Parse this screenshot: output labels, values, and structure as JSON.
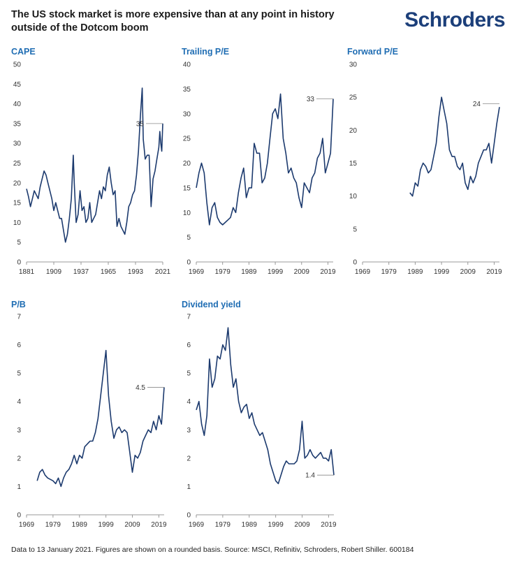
{
  "header": {
    "title": "The US stock market is more expensive than at any point in history outside of the Dotcom boom",
    "logo": "Schroders"
  },
  "footer": {
    "note": "Data to 13 January 2021. Figures are shown on a rounded basis. Source: MSCI, Refinitiv, Schroders, Robert Shiller. 600184"
  },
  "colors": {
    "line": "#1c3a6e",
    "title": "#1f6db3",
    "axis": "#999999"
  },
  "chart_data": [
    {
      "type": "line",
      "title": "CAPE",
      "ylim": [
        0,
        50
      ],
      "yticks": [
        0,
        5,
        10,
        15,
        20,
        25,
        30,
        35,
        40,
        45,
        50
      ],
      "xlim": [
        1881,
        2021
      ],
      "xticks": [
        1881,
        1909,
        1937,
        1965,
        1993,
        2021
      ],
      "annotation": {
        "label": "35",
        "x": 2021,
        "y": 35
      },
      "series": [
        {
          "x": [
            1881,
            1883,
            1885,
            1887,
            1889,
            1891,
            1893,
            1895,
            1897,
            1899,
            1901,
            1903,
            1905,
            1907,
            1909,
            1911,
            1913,
            1915,
            1917,
            1919,
            1921,
            1923,
            1925,
            1927,
            1929,
            1930,
            1932,
            1934,
            1936,
            1938,
            1940,
            1942,
            1944,
            1946,
            1948,
            1950,
            1952,
            1954,
            1956,
            1958,
            1960,
            1962,
            1964,
            1966,
            1968,
            1970,
            1972,
            1974,
            1976,
            1978,
            1980,
            1982,
            1984,
            1986,
            1988,
            1990,
            1992,
            1994,
            1996,
            1998,
            1999.9,
            2001,
            2003,
            2005,
            2007,
            2009,
            2011,
            2013,
            2015,
            2017,
            2018,
            2019,
            2020,
            2021
          ],
          "y": [
            18.5,
            16.5,
            14,
            16,
            18,
            17,
            16,
            19,
            21,
            23,
            22,
            20,
            18,
            16,
            13,
            15,
            13,
            11,
            11,
            8,
            5,
            7,
            11,
            16,
            27,
            20,
            10,
            12,
            18,
            13,
            14,
            10,
            11,
            15,
            10,
            11,
            12,
            15,
            18,
            16,
            19,
            18,
            22,
            24,
            20,
            17,
            18,
            9,
            11,
            9,
            8,
            7,
            10,
            14,
            15,
            17,
            18,
            22,
            28,
            37,
            44,
            31,
            26,
            27,
            27,
            14,
            21,
            23,
            26,
            29,
            33,
            30,
            28,
            35
          ]
        }
      ]
    },
    {
      "type": "line",
      "title": "Trailing P/E",
      "ylim": [
        0,
        40
      ],
      "yticks": [
        0,
        5,
        10,
        15,
        20,
        25,
        30,
        35,
        40
      ],
      "xlim": [
        1969,
        2021
      ],
      "xticks": [
        1969,
        1979,
        1989,
        1999,
        2009,
        2019
      ],
      "annotation": {
        "label": "33",
        "x": 2021,
        "y": 33
      },
      "series": [
        {
          "x": [
            1969,
            1970,
            1971,
            1972,
            1973,
            1974,
            1975,
            1976,
            1977,
            1978,
            1979,
            1980,
            1981,
            1982,
            1983,
            1984,
            1985,
            1986,
            1987,
            1988,
            1989,
            1990,
            1991,
            1992,
            1993,
            1994,
            1995,
            1996,
            1997,
            1998,
            1999,
            2000,
            2001,
            2002,
            2003,
            2004,
            2005,
            2006,
            2007,
            2008,
            2009,
            2010,
            2011,
            2012,
            2013,
            2014,
            2015,
            2016,
            2017,
            2018,
            2019,
            2020,
            2021
          ],
          "y": [
            15,
            18,
            20,
            18,
            12,
            7.5,
            11,
            12,
            9,
            8,
            7.5,
            8,
            8.5,
            9,
            11,
            10,
            14,
            17,
            19,
            13,
            15,
            15,
            24,
            22,
            22,
            16,
            17,
            20,
            25,
            30,
            31,
            29,
            34,
            25,
            22,
            18,
            19,
            17,
            16,
            13,
            11,
            16,
            15,
            14,
            17,
            18,
            21,
            22,
            25,
            18,
            20,
            22,
            33
          ]
        }
      ]
    },
    {
      "type": "line",
      "title": "Forward P/E",
      "ylim": [
        0,
        30
      ],
      "yticks": [
        0,
        5,
        10,
        15,
        20,
        25,
        30
      ],
      "xlim": [
        1969,
        2021
      ],
      "xticks": [
        1969,
        1979,
        1989,
        1999,
        2009,
        2019
      ],
      "annotation": {
        "label": "24",
        "x": 2021,
        "y": 24
      },
      "series": [
        {
          "x": [
            1987,
            1988,
            1989,
            1990,
            1991,
            1992,
            1993,
            1994,
            1995,
            1996,
            1997,
            1998,
            1999,
            2000,
            2001,
            2002,
            2003,
            2004,
            2005,
            2006,
            2007,
            2008,
            2009,
            2010,
            2011,
            2012,
            2013,
            2014,
            2015,
            2016,
            2017,
            2018,
            2019,
            2020,
            2021
          ],
          "y": [
            10.5,
            10,
            12,
            11.5,
            14,
            15,
            14.5,
            13.5,
            14,
            16,
            18,
            22,
            25,
            23,
            21,
            17,
            16,
            16,
            14.5,
            14,
            15,
            12,
            11,
            13,
            12,
            13,
            15,
            16,
            17,
            17,
            18,
            15,
            18,
            21,
            23.5
          ]
        }
      ]
    },
    {
      "type": "line",
      "title": "P/B",
      "ylim": [
        0,
        7
      ],
      "yticks": [
        0,
        1,
        2,
        3,
        4,
        5,
        6,
        7
      ],
      "xlim": [
        1969,
        2021
      ],
      "xticks": [
        1969,
        1979,
        1989,
        1999,
        2009,
        2019
      ],
      "annotation": {
        "label": "4.5",
        "x": 2021,
        "y": 4.5
      },
      "series": [
        {
          "x": [
            1973,
            1974,
            1975,
            1976,
            1977,
            1978,
            1979,
            1980,
            1981,
            1982,
            1983,
            1984,
            1985,
            1986,
            1987,
            1988,
            1989,
            1990,
            1991,
            1992,
            1993,
            1994,
            1995,
            1996,
            1997,
            1998,
            1999,
            2000,
            2001,
            2002,
            2003,
            2004,
            2005,
            2006,
            2007,
            2008,
            2009,
            2010,
            2011,
            2012,
            2013,
            2014,
            2015,
            2016,
            2017,
            2018,
            2019,
            2020,
            2021
          ],
          "y": [
            1.2,
            1.5,
            1.6,
            1.4,
            1.3,
            1.25,
            1.2,
            1.1,
            1.3,
            1.0,
            1.3,
            1.5,
            1.6,
            1.8,
            2.1,
            1.8,
            2.1,
            2.0,
            2.4,
            2.5,
            2.6,
            2.6,
            2.9,
            3.4,
            4.2,
            5.0,
            5.8,
            4.2,
            3.3,
            2.7,
            3.0,
            3.1,
            2.9,
            3.0,
            2.9,
            2.2,
            1.5,
            2.1,
            2.0,
            2.2,
            2.6,
            2.8,
            3.0,
            2.9,
            3.3,
            3.0,
            3.5,
            3.2,
            4.5
          ]
        }
      ]
    },
    {
      "type": "line",
      "title": "Dividend yield",
      "ylim": [
        0,
        7
      ],
      "yticks": [
        0,
        1,
        2,
        3,
        4,
        5,
        6,
        7
      ],
      "xlim": [
        1969,
        2021
      ],
      "xticks": [
        1969,
        1979,
        1989,
        1999,
        2009,
        2019
      ],
      "annotation": {
        "label": "1.4",
        "x": 2021,
        "y": 1.4
      },
      "series": [
        {
          "x": [
            1969,
            1970,
            1971,
            1972,
            1973,
            1974,
            1975,
            1976,
            1977,
            1978,
            1979,
            1980,
            1981,
            1982,
            1983,
            1984,
            1985,
            1986,
            1987,
            1988,
            1989,
            1990,
            1991,
            1992,
            1993,
            1994,
            1995,
            1996,
            1997,
            1998,
            1999,
            2000,
            2001,
            2002,
            2003,
            2004,
            2005,
            2006,
            2007,
            2008,
            2009,
            2010,
            2011,
            2012,
            2013,
            2014,
            2015,
            2016,
            2017,
            2018,
            2019,
            2020,
            2021
          ],
          "y": [
            3.7,
            4.0,
            3.2,
            2.8,
            3.5,
            5.5,
            4.5,
            4.8,
            5.6,
            5.5,
            6.0,
            5.8,
            6.6,
            5.3,
            4.5,
            4.8,
            4.0,
            3.6,
            3.8,
            3.9,
            3.4,
            3.6,
            3.2,
            3.0,
            2.8,
            2.9,
            2.6,
            2.3,
            1.8,
            1.5,
            1.2,
            1.1,
            1.4,
            1.7,
            1.9,
            1.8,
            1.8,
            1.8,
            1.9,
            2.3,
            3.3,
            2.0,
            2.1,
            2.3,
            2.1,
            2.0,
            2.1,
            2.2,
            2.0,
            2.0,
            1.9,
            2.3,
            1.4
          ]
        }
      ]
    }
  ]
}
